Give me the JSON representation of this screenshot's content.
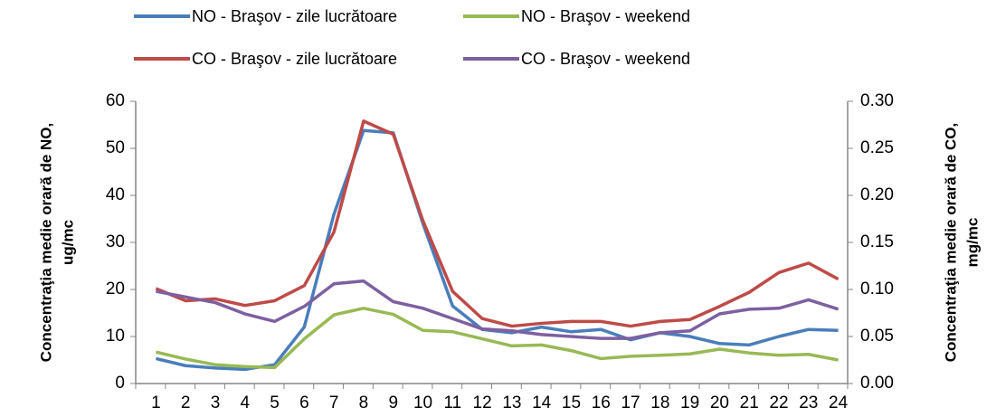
{
  "chart_data": {
    "type": "line",
    "categories": [
      "1",
      "2",
      "3",
      "4",
      "5",
      "6",
      "7",
      "8",
      "9",
      "10",
      "11",
      "12",
      "13",
      "14",
      "15",
      "16",
      "17",
      "18",
      "19",
      "20",
      "21",
      "22",
      "23",
      "24"
    ],
    "series": [
      {
        "name": "NO  - Braşov - zile lucrătoare",
        "color": "#4a7ebb",
        "values": [
          5.3,
          3.8,
          3.3,
          3.0,
          4.0,
          12,
          36,
          53.8,
          53.3,
          34,
          16.5,
          11.5,
          10.8,
          12,
          11,
          11.5,
          9.3,
          10.8,
          10,
          8.5,
          8.2,
          10,
          11.5,
          11.3
        ]
      },
      {
        "name": "NO  - Braşov - weekend",
        "color": "#98b954",
        "values": [
          6.7,
          5.2,
          4,
          3.6,
          3.4,
          9.5,
          14.6,
          16,
          14.7,
          11.3,
          11,
          9.5,
          8,
          8.2,
          7,
          5.3,
          5.8,
          6,
          6.3,
          7.3,
          6.5,
          6,
          6.2,
          5
        ]
      },
      {
        "name": "CO - Braşov - zile lucrătoare",
        "color": "#be4b48",
        "axis": "y2",
        "values": [
          0.101,
          0.088,
          0.09,
          0.083,
          0.088,
          0.104,
          0.161,
          0.279,
          0.265,
          0.173,
          0.098,
          0.069,
          0.061,
          0.064,
          0.066,
          0.066,
          0.061,
          0.066,
          0.068,
          0.082,
          0.097,
          0.118,
          0.128,
          0.111
        ]
      },
      {
        "name": "CO - Braşov - weekend",
        "color": "#7d60a0",
        "axis": "y2",
        "values": [
          0.098,
          0.092,
          0.086,
          0.074,
          0.066,
          0.082,
          0.106,
          0.109,
          0.087,
          0.08,
          0.069,
          0.058,
          0.056,
          0.052,
          0.05,
          0.048,
          0.048,
          0.054,
          0.056,
          0.074,
          0.079,
          0.08,
          0.089,
          0.079
        ]
      }
    ],
    "ylabel": [
      "Concentraţia medie orară de NO,",
      "ug/mc"
    ],
    "y2label": [
      "Concentraţia medie orară de CO,",
      "mg/mc"
    ],
    "ylim": [
      0,
      60
    ],
    "yticks": [
      0,
      10,
      20,
      30,
      40,
      50,
      60
    ],
    "y2lim": [
      0,
      0.3
    ],
    "y2ticks": [
      {
        "value": 0,
        "label": "0.00"
      },
      0.05,
      {
        "value": 0.1,
        "label": "0.10"
      },
      0.15,
      {
        "value": 0.2,
        "label": "0.20"
      },
      0.25,
      {
        "value": 0.3,
        "label": "0.30"
      }
    ],
    "legend": "top"
  }
}
